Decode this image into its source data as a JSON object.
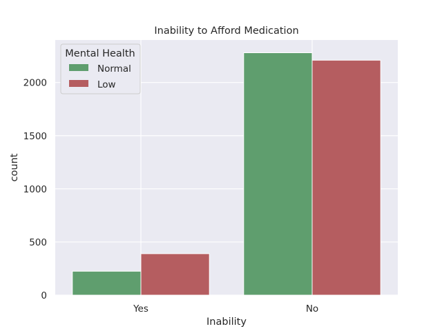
{
  "chart_data": {
    "type": "bar",
    "title": "Inability to Afford Medication",
    "xlabel": "Inability",
    "ylabel": "count",
    "categories": [
      "Yes",
      "No"
    ],
    "series": [
      {
        "name": "Normal",
        "color": "#5f9e6e",
        "values": [
          225,
          2280
        ]
      },
      {
        "name": "Low",
        "color": "#b55d60",
        "values": [
          390,
          2210
        ]
      }
    ],
    "ylim": [
      0,
      2400
    ],
    "yticks": [
      0,
      500,
      1000,
      1500,
      2000
    ],
    "grid": true,
    "legend": {
      "title": "Mental Health",
      "placement": "top-left"
    },
    "background": "#eaeaf2"
  }
}
